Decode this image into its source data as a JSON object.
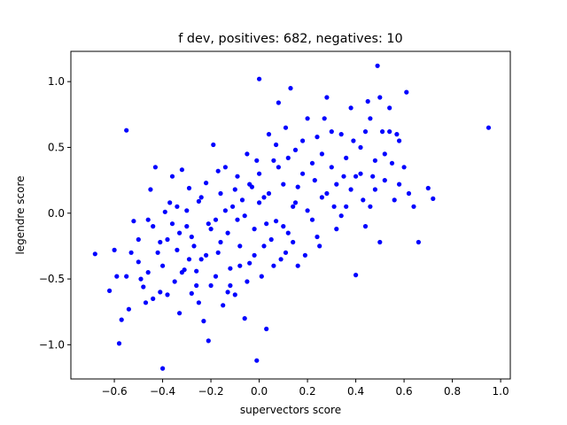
{
  "chart_data": {
    "type": "scatter",
    "title": "f dev, positives: 682, negatives: 10",
    "xlabel": "supervectors score",
    "ylabel": "legendre score",
    "xlim": [
      -0.78,
      1.04
    ],
    "ylim": [
      -1.26,
      1.23
    ],
    "x_ticks": [
      -0.6,
      -0.4,
      -0.2,
      0.0,
      0.2,
      0.4,
      0.6,
      0.8,
      1.0
    ],
    "x_tick_labels": [
      "−0.6",
      "−0.4",
      "−0.2",
      "0.0",
      "0.2",
      "0.4",
      "0.6",
      "0.8",
      "1.0"
    ],
    "y_ticks": [
      -1.0,
      -0.5,
      0.0,
      0.5,
      1.0
    ],
    "y_tick_labels": [
      "−1.0",
      "−0.5",
      "0.0",
      "0.5",
      "1.0"
    ],
    "grid": false,
    "marker_color": "#0000ff",
    "series": [
      {
        "points": [
          [
            -0.68,
            -0.31
          ],
          [
            -0.62,
            -0.59
          ],
          [
            -0.59,
            -0.48
          ],
          [
            -0.58,
            -0.99
          ],
          [
            -0.57,
            -0.81
          ],
          [
            -0.55,
            -0.48
          ],
          [
            -0.55,
            0.63
          ],
          [
            -0.54,
            -0.73
          ],
          [
            -0.52,
            -0.06
          ],
          [
            -0.5,
            -0.37
          ],
          [
            -0.49,
            -0.5
          ],
          [
            -0.48,
            -0.56
          ],
          [
            -0.46,
            -0.05
          ],
          [
            -0.45,
            0.18
          ],
          [
            -0.44,
            -0.65
          ],
          [
            -0.43,
            0.35
          ],
          [
            -0.42,
            -0.3
          ],
          [
            -0.41,
            -0.6
          ],
          [
            -0.4,
            -1.18
          ],
          [
            -0.39,
            0.01
          ],
          [
            -0.38,
            -0.2
          ],
          [
            -0.36,
            0.28
          ],
          [
            -0.35,
            -0.52
          ],
          [
            -0.34,
            0.05
          ],
          [
            -0.33,
            -0.76
          ],
          [
            -0.32,
            0.33
          ],
          [
            -0.31,
            -0.43
          ],
          [
            -0.3,
            -0.1
          ],
          [
            -0.29,
            0.19
          ],
          [
            -0.28,
            -0.61
          ],
          [
            -0.27,
            -0.25
          ],
          [
            -0.26,
            -0.44
          ],
          [
            -0.25,
            0.09
          ],
          [
            -0.24,
            -0.35
          ],
          [
            -0.23,
            -0.82
          ],
          [
            -0.22,
            0.23
          ],
          [
            -0.21,
            -0.97
          ],
          [
            -0.2,
            -0.55
          ],
          [
            -0.19,
            0.52
          ],
          [
            -0.18,
            -0.05
          ],
          [
            -0.17,
            -0.3
          ],
          [
            -0.16,
            0.15
          ],
          [
            -0.15,
            -0.7
          ],
          [
            -0.14,
            0.35
          ],
          [
            -0.13,
            -0.15
          ],
          [
            -0.12,
            -0.42
          ],
          [
            -0.11,
            0.05
          ],
          [
            -0.1,
            -0.62
          ],
          [
            -0.09,
            0.28
          ],
          [
            -0.08,
            -0.25
          ],
          [
            -0.07,
            0.1
          ],
          [
            -0.06,
            -0.8
          ],
          [
            -0.05,
            0.45
          ],
          [
            -0.04,
            -0.38
          ],
          [
            -0.03,
            0.2
          ],
          [
            -0.02,
            -0.12
          ],
          [
            -0.01,
            -1.12
          ],
          [
            0.0,
            0.3
          ],
          [
            0.0,
            1.02
          ],
          [
            0.01,
            -0.48
          ],
          [
            0.02,
            0.12
          ],
          [
            0.03,
            -0.88
          ],
          [
            0.04,
            0.6
          ],
          [
            0.05,
            -0.2
          ],
          [
            0.06,
            0.4
          ],
          [
            0.07,
            -0.06
          ],
          [
            0.08,
            0.84
          ],
          [
            0.09,
            -0.35
          ],
          [
            0.1,
            0.22
          ],
          [
            0.11,
            0.65
          ],
          [
            0.12,
            -0.15
          ],
          [
            0.13,
            0.95
          ],
          [
            0.14,
            0.05
          ],
          [
            0.15,
            0.48
          ],
          [
            0.16,
            -0.4
          ],
          [
            0.18,
            0.3
          ],
          [
            0.2,
            0.72
          ],
          [
            0.22,
            -0.05
          ],
          [
            0.24,
            0.58
          ],
          [
            0.25,
            -0.25
          ],
          [
            0.26,
            0.12
          ],
          [
            0.28,
            0.88
          ],
          [
            0.3,
            0.35
          ],
          [
            0.32,
            -0.12
          ],
          [
            0.34,
            0.6
          ],
          [
            0.36,
            0.05
          ],
          [
            0.38,
            0.8
          ],
          [
            0.4,
            0.28
          ],
          [
            0.4,
            -0.47
          ],
          [
            0.42,
            0.5
          ],
          [
            0.44,
            -0.1
          ],
          [
            0.46,
            0.72
          ],
          [
            0.48,
            0.18
          ],
          [
            0.49,
            1.12
          ],
          [
            0.5,
            0.88
          ],
          [
            0.5,
            -0.22
          ],
          [
            0.52,
            0.45
          ],
          [
            0.54,
            0.62
          ],
          [
            0.56,
            0.1
          ],
          [
            0.58,
            0.55
          ],
          [
            0.6,
            0.35
          ],
          [
            0.61,
            0.92
          ],
          [
            0.62,
            0.15
          ],
          [
            0.64,
            0.05
          ],
          [
            0.66,
            -0.22
          ],
          [
            0.7,
            0.19
          ],
          [
            0.72,
            0.11
          ],
          [
            0.95,
            0.65
          ],
          [
            -0.5,
            -0.2
          ],
          [
            -0.46,
            -0.45
          ],
          [
            -0.44,
            -0.1
          ],
          [
            -0.4,
            -0.4
          ],
          [
            -0.38,
            -0.62
          ],
          [
            -0.36,
            -0.08
          ],
          [
            -0.34,
            -0.28
          ],
          [
            -0.32,
            -0.45
          ],
          [
            -0.3,
            0.02
          ],
          [
            -0.28,
            -0.18
          ],
          [
            -0.26,
            -0.55
          ],
          [
            -0.24,
            0.12
          ],
          [
            -0.22,
            -0.32
          ],
          [
            -0.2,
            -0.12
          ],
          [
            -0.18,
            -0.48
          ],
          [
            -0.16,
            -0.22
          ],
          [
            -0.14,
            0.02
          ],
          [
            -0.12,
            -0.55
          ],
          [
            -0.1,
            0.18
          ],
          [
            -0.08,
            -0.4
          ],
          [
            -0.06,
            -0.02
          ],
          [
            -0.04,
            0.22
          ],
          [
            -0.02,
            -0.32
          ],
          [
            0.0,
            0.08
          ],
          [
            0.02,
            -0.25
          ],
          [
            0.04,
            0.15
          ],
          [
            0.06,
            -0.4
          ],
          [
            0.08,
            0.35
          ],
          [
            0.1,
            -0.1
          ],
          [
            0.12,
            0.42
          ],
          [
            0.14,
            -0.22
          ],
          [
            0.16,
            0.2
          ],
          [
            0.18,
            0.55
          ],
          [
            0.2,
            0.02
          ],
          [
            0.22,
            0.38
          ],
          [
            0.24,
            -0.18
          ],
          [
            0.26,
            0.45
          ],
          [
            0.28,
            0.15
          ],
          [
            0.3,
            0.62
          ],
          [
            0.32,
            0.22
          ],
          [
            0.34,
            -0.02
          ],
          [
            0.36,
            0.42
          ],
          [
            0.38,
            0.18
          ],
          [
            0.42,
            0.3
          ],
          [
            0.44,
            0.62
          ],
          [
            0.46,
            0.05
          ],
          [
            0.48,
            0.4
          ],
          [
            0.52,
            0.25
          ],
          [
            0.54,
            0.8
          ],
          [
            0.58,
            0.22
          ],
          [
            -0.6,
            -0.28
          ],
          [
            -0.53,
            -0.3
          ],
          [
            -0.47,
            -0.68
          ],
          [
            -0.41,
            -0.22
          ],
          [
            -0.37,
            0.08
          ],
          [
            -0.33,
            -0.15
          ],
          [
            -0.29,
            -0.35
          ],
          [
            -0.25,
            -0.68
          ],
          [
            -0.21,
            -0.08
          ],
          [
            -0.17,
            0.32
          ],
          [
            -0.13,
            -0.6
          ],
          [
            -0.09,
            -0.05
          ],
          [
            -0.05,
            -0.52
          ],
          [
            -0.01,
            0.4
          ],
          [
            0.03,
            -0.08
          ],
          [
            0.07,
            0.52
          ],
          [
            0.11,
            -0.3
          ],
          [
            0.15,
            0.08
          ],
          [
            0.19,
            -0.32
          ],
          [
            0.23,
            0.25
          ],
          [
            0.27,
            0.72
          ],
          [
            0.31,
            0.05
          ],
          [
            0.35,
            0.28
          ],
          [
            0.39,
            0.55
          ],
          [
            0.43,
            0.1
          ],
          [
            0.47,
            0.28
          ],
          [
            0.51,
            0.62
          ],
          [
            0.55,
            0.38
          ],
          [
            0.57,
            0.6
          ],
          [
            0.45,
            0.85
          ]
        ]
      }
    ]
  }
}
